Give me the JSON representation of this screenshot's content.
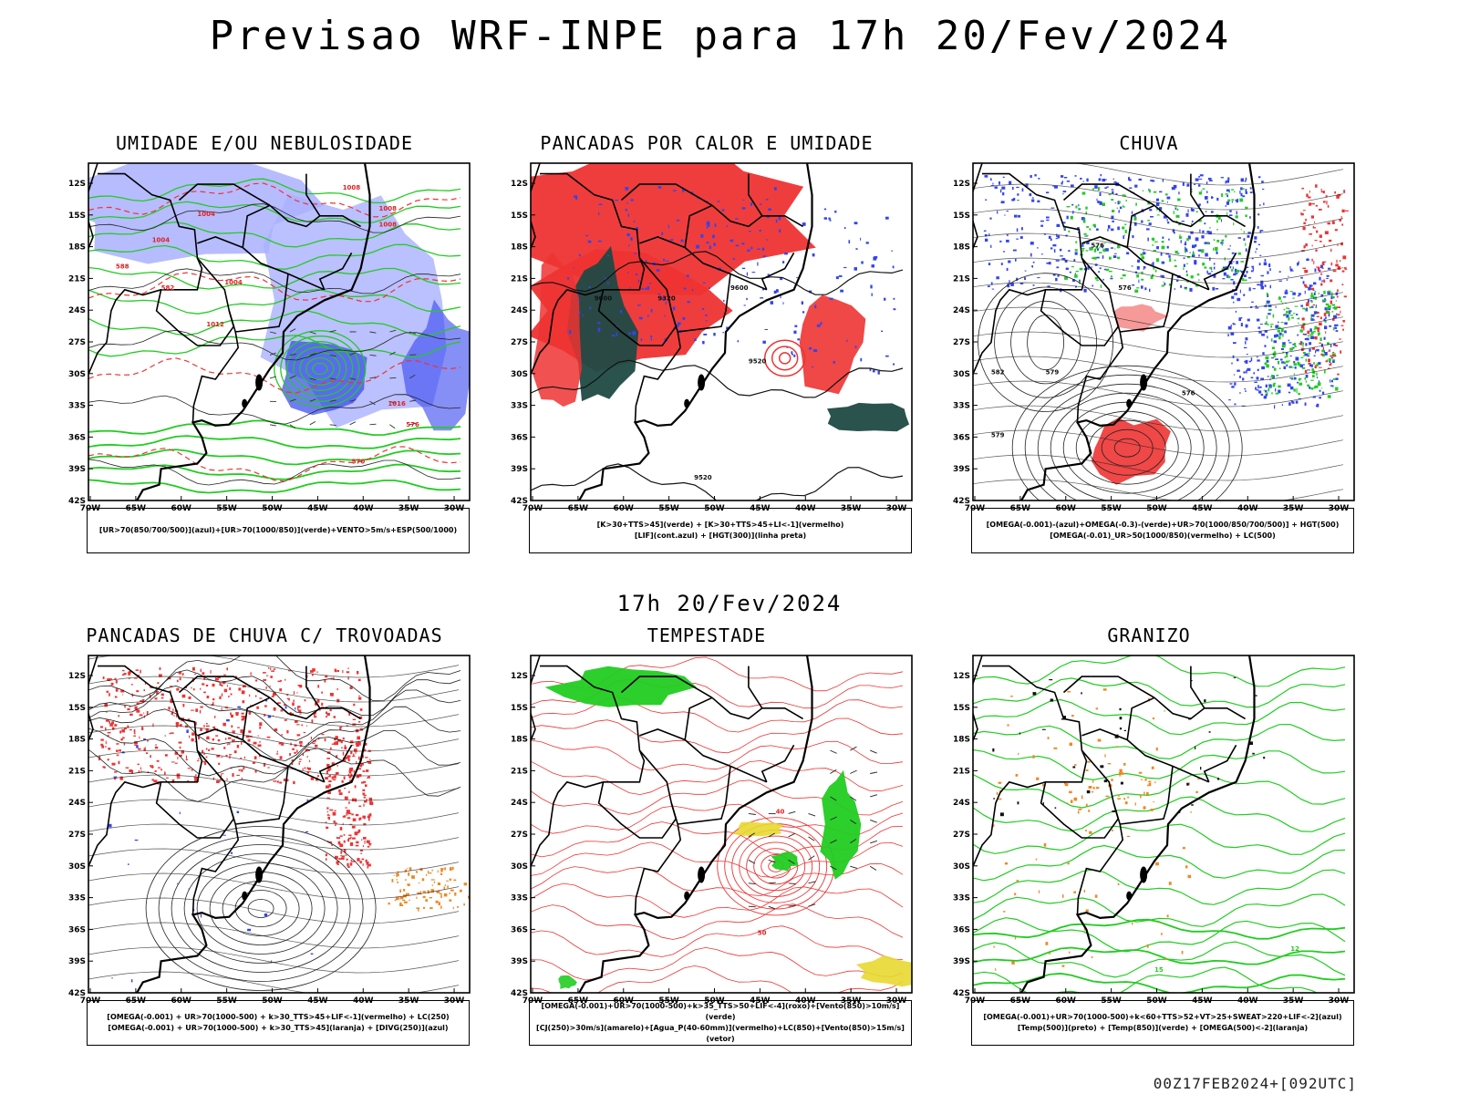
{
  "page": {
    "title": "Previsao WRF-INPE  para 17h 20/Fev/2024",
    "mid_date": "17h 20/Fev/2024",
    "footer": "00Z17FEB2024+[092UTC]"
  },
  "axes": {
    "lon_labels": [
      "70W",
      "65W",
      "60W",
      "55W",
      "50W",
      "45W",
      "40W",
      "35W",
      "30W"
    ],
    "lat_labels": [
      "12S",
      "15S",
      "18S",
      "21S",
      "24S",
      "27S",
      "30S",
      "33S",
      "36S",
      "39S",
      "42S"
    ]
  },
  "colors": {
    "blue": "#3344ee",
    "light_blue": "#aab0ff",
    "green": "#22cc22",
    "red": "#ee3333",
    "dark_teal": "#1f4a45",
    "orange": "#ee8822",
    "yellow": "#e8d830"
  },
  "panels": [
    {
      "title": "UMIDADE E/OU NEBULOSIDADE",
      "legend": [
        "[UR>70(850/700/500)](azul)+[UR>70(1000/850)](verde)+VENTO>5m/s+ESP(500/1000)"
      ],
      "labels": [
        "1008",
        "1004",
        "1008",
        "1004",
        "1008",
        "1004",
        "1012",
        "1016",
        "576",
        "570",
        "582",
        "588"
      ]
    },
    {
      "title": "PANCADAS POR CALOR E UMIDADE",
      "legend": [
        "[K>30+TTS>45](verde) + [K>30+TTS>45+LI<-1](vermelho)",
        "[LIF](cont.azul) + [HGT(300)](linha preta)"
      ],
      "labels": [
        "9600",
        "9320",
        "9600",
        "9520",
        "9520"
      ]
    },
    {
      "title": "CHUVA",
      "legend": [
        "[OMEGA(-0.001)-(azul)+OMEGA(-0.3)-(verde)+UR>70(1000/850/700/500)] + HGT(500)",
        "[OMEGA(-0.01)_UR>50(1000/850)(vermelho) + LC(500)"
      ],
      "labels": [
        "576",
        "579",
        "576",
        "582",
        "576",
        "579"
      ]
    },
    {
      "title": "PANCADAS DE CHUVA C/ TROVOADAS",
      "legend": [
        "[OMEGA(-0.001) + UR>70(1000-500) + k>30_TTS>45+LIF<-1](vermelho) + LC(250)",
        "[OMEGA(-0.001) + UR>70(1000-500) + k>30_TTS>45](laranja) + [DIVG(250)](azul)"
      ],
      "labels": []
    },
    {
      "title": "TEMPESTADE",
      "legend": [
        "[OMEGA(-0.001)+UR>70(1000-500)+k>35_TTS>50+LIF<-4](roxo)+[Vento(850)>10m/s](verde)",
        "[CJ(250)>30m/s](amarelo)+[Agua_P(40-60mm)](vermelho)+LC(850)+[Vento(850)>15m/s](vetor)"
      ],
      "labels": [
        "40",
        "50"
      ]
    },
    {
      "title": "GRANIZO",
      "legend": [
        "[OMEGA(-0.001)+UR>70(1000-500)+k<60+TTS>52+VT>25+SWEAT>220+LIF<-2](azul)",
        "[Temp(500)](preto) + [Temp(850)](verde) + [OMEGA(500)<-2](laranja)"
      ],
      "labels": [
        "15",
        "12"
      ]
    }
  ]
}
